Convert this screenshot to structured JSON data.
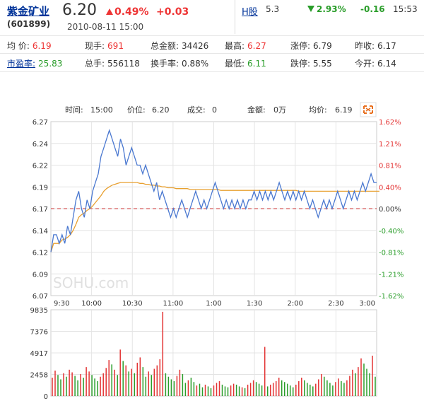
{
  "quote": {
    "name": "紫金矿业",
    "code": "(601899)",
    "price": "6.20",
    "pct": "0.49%",
    "change": "+0.03",
    "datetime": "2010-08-11 15:00"
  },
  "h_share": {
    "label": "H股",
    "price": "5.3",
    "pct": "2.93%",
    "change": "-0.16",
    "time": "15:53"
  },
  "stats_row1": [
    {
      "label": "均 价:",
      "value": "6.19",
      "color": "red"
    },
    {
      "label": "现手:",
      "value": "691",
      "color": "red"
    },
    {
      "label": "总金额:",
      "value": "34426",
      "color": ""
    },
    {
      "label": "最高:",
      "value": "6.27",
      "color": "red"
    },
    {
      "label": "涨停:",
      "value": "6.79",
      "color": ""
    },
    {
      "label": "昨收:",
      "value": "6.17",
      "color": ""
    }
  ],
  "stats_row2": [
    {
      "label": "市盈率:",
      "value": "25.83",
      "color": "green",
      "link": true
    },
    {
      "label": "总手:",
      "value": "556118",
      "color": ""
    },
    {
      "label": "换手率:",
      "value": "0.88%",
      "color": ""
    },
    {
      "label": "最低:",
      "value": "6.11",
      "color": "green"
    },
    {
      "label": "跌停:",
      "value": "5.55",
      "color": ""
    },
    {
      "label": "今开:",
      "value": "6.14",
      "color": ""
    }
  ],
  "info_bar": {
    "time_label": "时间:",
    "time": "15:00",
    "price_label": "价位:",
    "price": "6.20",
    "deal_label": "成交:",
    "deal": "0",
    "amount_label": "金额:",
    "amount": "0万",
    "avg_label": "均价:",
    "avg": "6.19"
  },
  "watermark": "SOHU.com",
  "colors": {
    "up": "#e33333",
    "down": "#2a9d2a",
    "price_line": "#4a78d0",
    "avg_line": "#e8a030",
    "link": "#003399"
  },
  "chart_data": {
    "type": "line",
    "ylim": [
      6.07,
      6.27
    ],
    "y_ticks": [
      "6.27",
      "6.24",
      "6.22",
      "6.19",
      "6.17",
      "6.14",
      "6.12",
      "6.09",
      "6.07"
    ],
    "pct_ticks": [
      "1.62%",
      "1.21%",
      "0.81%",
      "0.40%",
      "0.00%",
      "-0.40%",
      "-0.81%",
      "-1.21%",
      "-1.62%"
    ],
    "x_labels": [
      "9:30",
      "10:00",
      "10:30",
      "11:00",
      "1:00",
      "1:30",
      "2:00",
      "2:30",
      "3:00"
    ],
    "prev_close": 6.17,
    "price": [
      6.12,
      6.14,
      6.14,
      6.13,
      6.14,
      6.13,
      6.15,
      6.14,
      6.16,
      6.18,
      6.19,
      6.17,
      6.16,
      6.18,
      6.17,
      6.19,
      6.2,
      6.21,
      6.23,
      6.24,
      6.25,
      6.26,
      6.25,
      6.24,
      6.23,
      6.25,
      6.24,
      6.22,
      6.23,
      6.24,
      6.23,
      6.22,
      6.22,
      6.21,
      6.22,
      6.21,
      6.2,
      6.19,
      6.2,
      6.18,
      6.19,
      6.18,
      6.17,
      6.16,
      6.17,
      6.16,
      6.17,
      6.18,
      6.17,
      6.16,
      6.17,
      6.18,
      6.19,
      6.18,
      6.17,
      6.18,
      6.17,
      6.18,
      6.19,
      6.2,
      6.19,
      6.18,
      6.17,
      6.18,
      6.17,
      6.18,
      6.17,
      6.18,
      6.17,
      6.18,
      6.17,
      6.18,
      6.18,
      6.19,
      6.18,
      6.19,
      6.18,
      6.19,
      6.18,
      6.19,
      6.18,
      6.19,
      6.2,
      6.19,
      6.18,
      6.19,
      6.18,
      6.19,
      6.18,
      6.19,
      6.18,
      6.19,
      6.18,
      6.17,
      6.18,
      6.17,
      6.16,
      6.17,
      6.18,
      6.17,
      6.18,
      6.17,
      6.18,
      6.19,
      6.18,
      6.17,
      6.18,
      6.19,
      6.18,
      6.19,
      6.18,
      6.19,
      6.2,
      6.19,
      6.2,
      6.21,
      6.2,
      6.2
    ],
    "avg": [
      6.12,
      6.13,
      6.13,
      6.13,
      6.134,
      6.135,
      6.137,
      6.14,
      6.145,
      6.152,
      6.16,
      6.163,
      6.165,
      6.168,
      6.17,
      6.173,
      6.177,
      6.181,
      6.185,
      6.19,
      6.193,
      6.195,
      6.197,
      6.198,
      6.199,
      6.2,
      6.2,
      6.2,
      6.2,
      6.2,
      6.2,
      6.2,
      6.199,
      6.199,
      6.198,
      6.198,
      6.197,
      6.197,
      6.196,
      6.196,
      6.195,
      6.195,
      6.194,
      6.194,
      6.194,
      6.193,
      6.193,
      6.193,
      6.193,
      6.193,
      6.192,
      6.192,
      6.192,
      6.192,
      6.192,
      6.192,
      6.192,
      6.192,
      6.192,
      6.192,
      6.192,
      6.191,
      6.191,
      6.191,
      6.191,
      6.191,
      6.191,
      6.191,
      6.191,
      6.191,
      6.191,
      6.191,
      6.191,
      6.191,
      6.191,
      6.191,
      6.191,
      6.191,
      6.191,
      6.191,
      6.191,
      6.191,
      6.191,
      6.191,
      6.191,
      6.191,
      6.191,
      6.191,
      6.191,
      6.19,
      6.19,
      6.19,
      6.19,
      6.19,
      6.19,
      6.19,
      6.19,
      6.19,
      6.19,
      6.19,
      6.19,
      6.19,
      6.19,
      6.19,
      6.19,
      6.19,
      6.19,
      6.19,
      6.19,
      6.19,
      6.19,
      6.19,
      6.19,
      6.19,
      6.19,
      6.19,
      6.19,
      6.19,
      6.19
    ],
    "volume_ticks": [
      "9835",
      "7376",
      "4917",
      "2458",
      "0"
    ],
    "volume_max": 9835,
    "volumes": [
      2100,
      2900,
      2400,
      1900,
      2600,
      2200,
      3000,
      2700,
      2300,
      1800,
      2500,
      2100,
      3300,
      2800,
      2400,
      2000,
      1700,
      2200,
      2600,
      3200,
      4100,
      3600,
      3000,
      2400,
      5300,
      4000,
      3500,
      2800,
      3100,
      2600,
      3800,
      4400,
      3300,
      2200,
      2800,
      2400,
      3100,
      3500,
      4200,
      9600,
      2600,
      2200,
      1900,
      1700,
      2300,
      3000,
      2500,
      1500,
      1800,
      2100,
      1600,
      1200,
      1400,
      1000,
      1300,
      1100,
      900,
      1200,
      1500,
      1700,
      1300,
      1100,
      1000,
      1200,
      1400,
      1300,
      1100,
      1000,
      900,
      1300,
      1500,
      1800,
      1600,
      1400,
      1200,
      5600,
      1100,
      1300,
      1500,
      1700,
      2100,
      1800,
      1600,
      1400,
      1200,
      1000,
      1300,
      1700,
      2100,
      1800,
      1500,
      1300,
      1100,
      1400,
      1900,
      2500,
      2200,
      1800,
      1500,
      1200,
      1600,
      2000,
      1700,
      1500,
      1800,
      2300,
      3000,
      2600,
      3300,
      4300,
      3700,
      3100,
      2600,
      4600,
      2200
    ],
    "volume_dir": [
      "u",
      "u",
      "d",
      "d",
      "u",
      "d",
      "u",
      "u",
      "d",
      "d",
      "u",
      "d",
      "u",
      "u",
      "d",
      "d",
      "d",
      "u",
      "u",
      "u",
      "u",
      "d",
      "u",
      "d",
      "u",
      "d",
      "u",
      "d",
      "u",
      "d",
      "u",
      "u",
      "d",
      "d",
      "u",
      "d",
      "u",
      "u",
      "u",
      "u",
      "d",
      "d",
      "d",
      "d",
      "u",
      "u",
      "d",
      "d",
      "u",
      "d",
      "d",
      "u",
      "d",
      "d",
      "u",
      "d",
      "d",
      "u",
      "u",
      "u",
      "d",
      "d",
      "d",
      "u",
      "u",
      "d",
      "d",
      "u",
      "d",
      "u",
      "u",
      "u",
      "d",
      "d",
      "d",
      "u",
      "d",
      "u",
      "u",
      "u",
      "u",
      "d",
      "d",
      "d",
      "d",
      "d",
      "u",
      "u",
      "u",
      "d",
      "d",
      "d",
      "d",
      "u",
      "u",
      "u",
      "d",
      "d",
      "d",
      "d",
      "u",
      "u",
      "d",
      "d",
      "u",
      "u",
      "u",
      "d",
      "u",
      "u",
      "d",
      "d",
      "d",
      "u",
      "d"
    ]
  }
}
